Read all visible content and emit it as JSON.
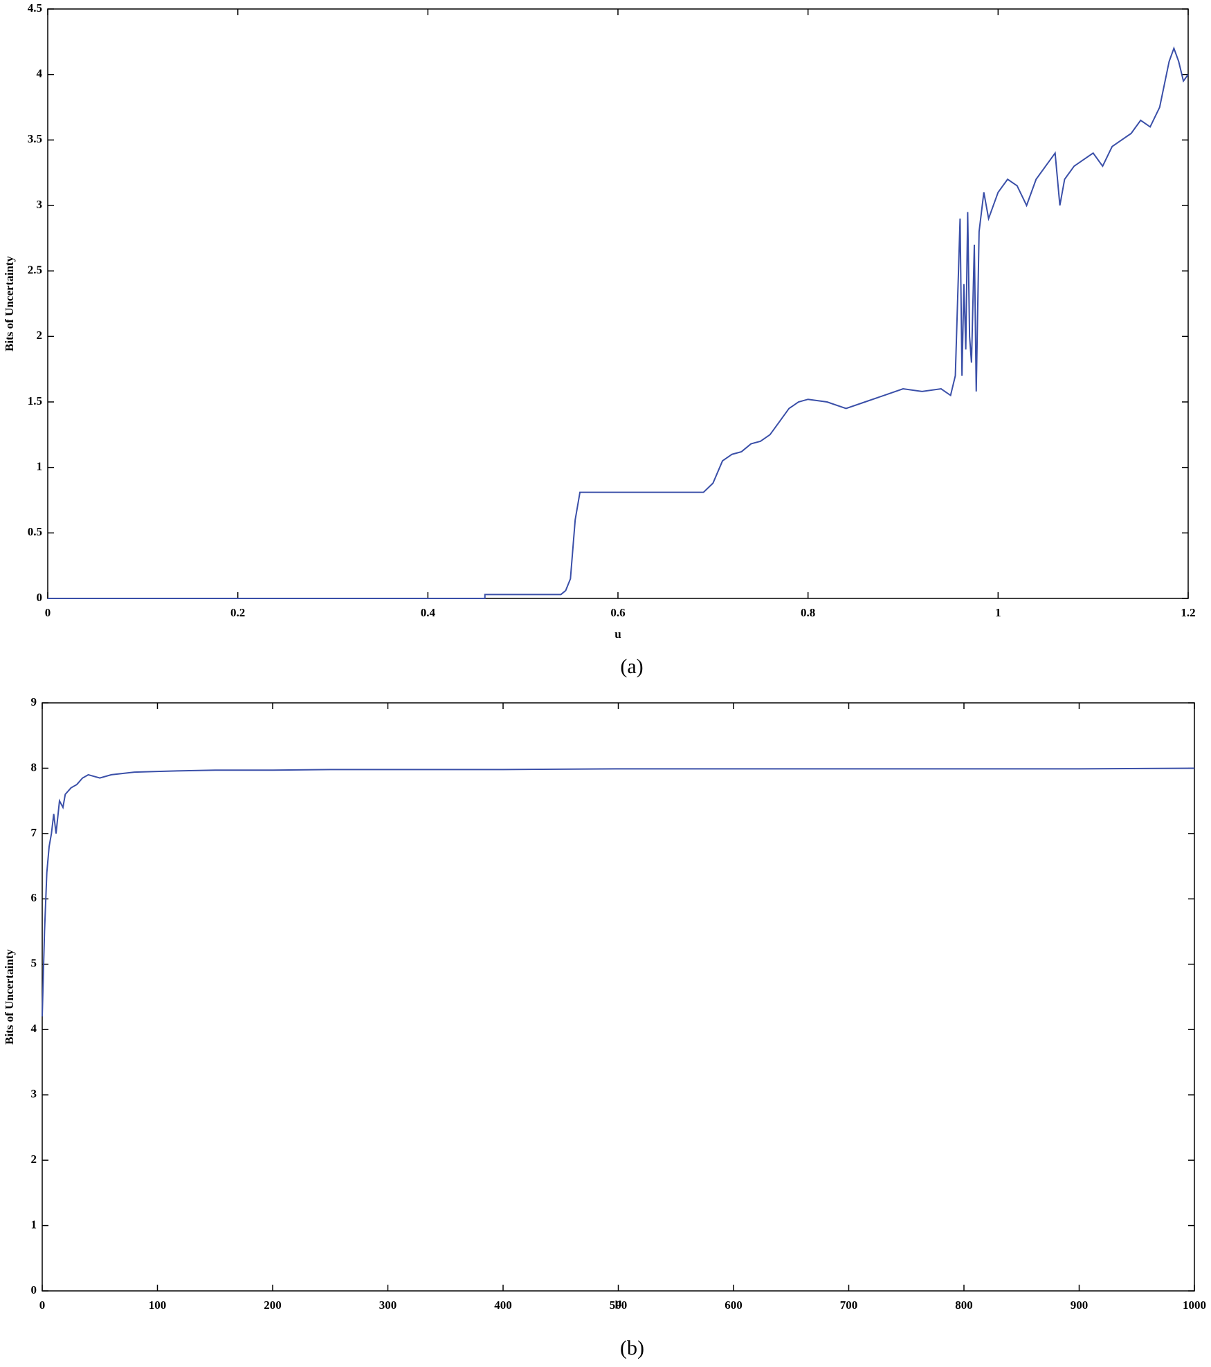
{
  "chart_data": [
    {
      "type": "line",
      "x_label": "u",
      "y_label": "Bits of Uncertainty",
      "caption": "(a)",
      "xlim": [
        0,
        1.2
      ],
      "ylim": [
        0,
        4.5
      ],
      "xticks": [
        0,
        0.2,
        0.4,
        0.6,
        0.8,
        1,
        1.2
      ],
      "yticks": [
        0,
        0.5,
        1,
        1.5,
        2,
        2.5,
        3,
        3.5,
        4,
        4.5
      ],
      "x": [
        0,
        0.46,
        0.46,
        0.54,
        0.545,
        0.55,
        0.555,
        0.56,
        0.69,
        0.7,
        0.71,
        0.72,
        0.73,
        0.74,
        0.75,
        0.76,
        0.77,
        0.78,
        0.79,
        0.8,
        0.82,
        0.84,
        0.86,
        0.88,
        0.9,
        0.92,
        0.94,
        0.95,
        0.955,
        0.96,
        0.962,
        0.964,
        0.966,
        0.968,
        0.97,
        0.972,
        0.975,
        0.977,
        0.98,
        0.985,
        0.99,
        1.0,
        1.01,
        1.02,
        1.03,
        1.04,
        1.05,
        1.06,
        1.065,
        1.07,
        1.08,
        1.09,
        1.1,
        1.11,
        1.12,
        1.13,
        1.14,
        1.15,
        1.16,
        1.17,
        1.18,
        1.185,
        1.19,
        1.195,
        1.2
      ],
      "series": [
        {
          "color": "#3a4fa8",
          "values": [
            0,
            0,
            0.03,
            0.03,
            0.06,
            0.15,
            0.6,
            0.81,
            0.81,
            0.88,
            1.05,
            1.1,
            1.12,
            1.18,
            1.2,
            1.25,
            1.35,
            1.45,
            1.5,
            1.52,
            1.5,
            1.45,
            1.5,
            1.55,
            1.6,
            1.58,
            1.6,
            1.55,
            1.7,
            2.9,
            1.7,
            2.4,
            1.9,
            2.95,
            2.0,
            1.8,
            2.7,
            1.58,
            2.8,
            3.1,
            2.9,
            3.1,
            3.2,
            3.15,
            3.0,
            3.2,
            3.3,
            3.4,
            3.0,
            3.2,
            3.3,
            3.35,
            3.4,
            3.3,
            3.45,
            3.5,
            3.55,
            3.65,
            3.6,
            3.75,
            4.1,
            4.2,
            4.1,
            3.95,
            4.0
          ]
        }
      ]
    },
    {
      "type": "line",
      "x_label": "μ",
      "y_label": "Bits of Uncertainty",
      "caption": "(b)",
      "xlim": [
        0,
        1000
      ],
      "ylim": [
        0,
        9
      ],
      "xticks": [
        0,
        100,
        200,
        300,
        400,
        500,
        600,
        700,
        800,
        900,
        1000
      ],
      "yticks": [
        0,
        1,
        2,
        3,
        4,
        5,
        6,
        7,
        8,
        9
      ],
      "x": [
        0,
        2,
        4,
        6,
        8,
        10,
        12,
        15,
        18,
        20,
        25,
        30,
        35,
        40,
        50,
        60,
        70,
        80,
        100,
        120,
        150,
        200,
        250,
        300,
        400,
        500,
        600,
        700,
        800,
        900,
        1000
      ],
      "series": [
        {
          "color": "#3a4fa8",
          "values": [
            4.2,
            5.5,
            6.4,
            6.8,
            7.0,
            7.3,
            7.0,
            7.5,
            7.4,
            7.6,
            7.7,
            7.75,
            7.85,
            7.9,
            7.85,
            7.9,
            7.92,
            7.94,
            7.95,
            7.96,
            7.97,
            7.97,
            7.98,
            7.98,
            7.98,
            7.99,
            7.99,
            7.99,
            7.99,
            7.99,
            8.0
          ]
        }
      ]
    }
  ]
}
